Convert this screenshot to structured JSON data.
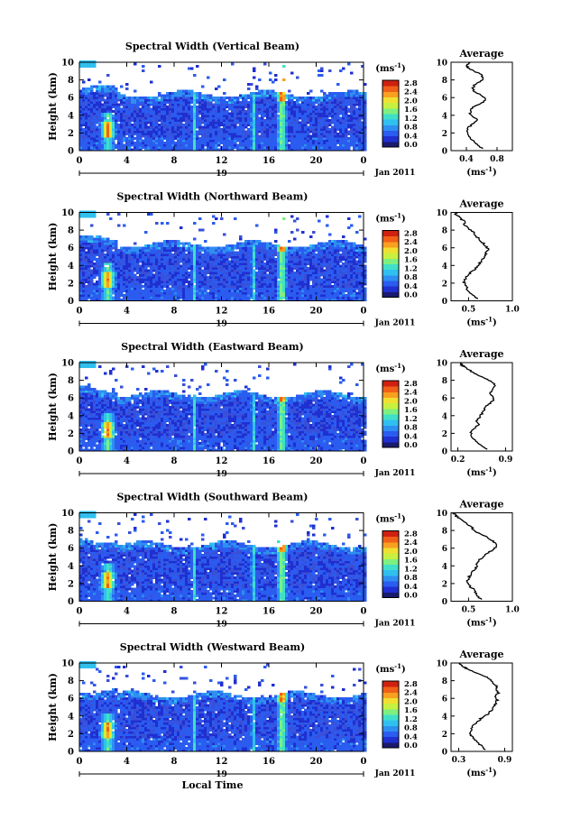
{
  "colorbar": {
    "unit_base": "(ms",
    "unit_exp": "-1",
    "unit_close": ")",
    "ticks": [
      "2.8",
      "2.4",
      "2.0",
      "1.6",
      "1.2",
      "0.8",
      "0.4",
      "0.0"
    ],
    "colors": [
      "#1a1a6e",
      "#1f2fd0",
      "#2a5cf0",
      "#2e8ff0",
      "#30c0f0",
      "#40e0c8",
      "#7ef080",
      "#c8f040",
      "#f0e030",
      "#f8a020",
      "#f06018",
      "#d02010"
    ]
  },
  "colors": {
    "background": "#ffffff",
    "base_blue": "#3a4fd8",
    "line": "#000000"
  },
  "chart_data": [
    {
      "type": "heatmap",
      "title": "Spectral Width (Vertical Beam)",
      "ylabel": "Height (km)",
      "xlabel": "",
      "x_ticks": [
        "0",
        "4",
        "8",
        "12",
        "16",
        "20",
        "0"
      ],
      "y_ticks": [
        "0",
        "2",
        "4",
        "6",
        "8",
        "10"
      ],
      "xlim": [
        0,
        24
      ],
      "ylim": [
        0,
        10
      ],
      "date_day": "19",
      "date_label": "Jan 2011",
      "value_range": [
        0.0,
        2.8
      ],
      "profile": {
        "title": "Average",
        "xlabel_base": "(ms",
        "xlabel_exp": "-1",
        "xlabel_close": ")",
        "x_ticks": [
          "0.4",
          "0.8"
        ],
        "xlim": [
          0.2,
          1.0
        ],
        "x": [
          0.62,
          0.55,
          0.5,
          0.45,
          0.42,
          0.4,
          0.42,
          0.48,
          0.55,
          0.5,
          0.45,
          0.45,
          0.5,
          0.6,
          0.65,
          0.6,
          0.52,
          0.48,
          0.5,
          0.58,
          0.62,
          0.6,
          0.5,
          0.42,
          0.4,
          0.42,
          0.45
        ],
        "y": [
          0.2,
          0.6,
          1.0,
          1.4,
          1.8,
          2.2,
          2.6,
          3.0,
          3.4,
          3.8,
          4.2,
          4.6,
          5.0,
          5.4,
          5.8,
          6.2,
          6.6,
          7.0,
          7.4,
          7.8,
          8.2,
          8.6,
          9.0,
          9.4,
          9.6,
          9.8,
          10.0
        ]
      }
    },
    {
      "type": "heatmap",
      "title": "Spectral Width (Northward Beam)",
      "ylabel": "Height (km)",
      "xlabel": "",
      "x_ticks": [
        "0",
        "4",
        "8",
        "12",
        "16",
        "20",
        "0"
      ],
      "y_ticks": [
        "0",
        "2",
        "4",
        "6",
        "8",
        "10"
      ],
      "xlim": [
        0,
        24
      ],
      "ylim": [
        0,
        10
      ],
      "date_day": "19",
      "date_label": "Jan 2011",
      "value_range": [
        0.0,
        2.8
      ],
      "profile": {
        "title": "Average",
        "xlabel_base": "(ms",
        "xlabel_exp": "-1",
        "xlabel_close": ")",
        "x_ticks": [
          "0.5",
          "1.0"
        ],
        "xlim": [
          0.3,
          1.0
        ],
        "x": [
          0.6,
          0.55,
          0.5,
          0.48,
          0.46,
          0.45,
          0.47,
          0.5,
          0.55,
          0.6,
          0.62,
          0.65,
          0.68,
          0.7,
          0.72,
          0.7,
          0.66,
          0.62,
          0.58,
          0.55,
          0.5,
          0.46,
          0.45,
          0.4,
          0.38,
          0.35,
          0.36
        ],
        "y": [
          0.2,
          0.6,
          1.0,
          1.4,
          1.8,
          2.2,
          2.6,
          3.0,
          3.4,
          3.8,
          4.2,
          4.6,
          5.0,
          5.4,
          5.8,
          6.2,
          6.6,
          7.0,
          7.4,
          7.8,
          8.2,
          8.6,
          9.0,
          9.4,
          9.6,
          9.8,
          10.0
        ]
      }
    },
    {
      "type": "heatmap",
      "title": "Spectral Width (Eastward Beam)",
      "ylabel": "Height (km)",
      "xlabel": "",
      "x_ticks": [
        "0",
        "4",
        "8",
        "12",
        "16",
        "20",
        "0"
      ],
      "y_ticks": [
        "0",
        "2",
        "4",
        "6",
        "8",
        "10"
      ],
      "xlim": [
        0,
        24
      ],
      "ylim": [
        0,
        10
      ],
      "date_day": "19",
      "date_label": "Jan 2011",
      "value_range": [
        0.0,
        2.8
      ],
      "profile": {
        "title": "Average",
        "xlabel_base": "(ms",
        "xlabel_exp": "-1",
        "xlabel_close": ")",
        "x_ticks": [
          "0.2",
          "0.9"
        ],
        "xlim": [
          0.1,
          1.0
        ],
        "x": [
          0.62,
          0.55,
          0.48,
          0.42,
          0.38,
          0.4,
          0.45,
          0.5,
          0.48,
          0.52,
          0.55,
          0.58,
          0.6,
          0.68,
          0.72,
          0.7,
          0.68,
          0.72,
          0.75,
          0.7,
          0.6,
          0.5,
          0.4,
          0.32,
          0.28,
          0.25,
          0.25
        ],
        "y": [
          0.2,
          0.6,
          1.0,
          1.4,
          1.8,
          2.2,
          2.6,
          3.0,
          3.4,
          3.8,
          4.2,
          4.6,
          5.0,
          5.4,
          5.8,
          6.2,
          6.6,
          7.0,
          7.4,
          7.8,
          8.2,
          8.6,
          9.0,
          9.4,
          9.6,
          9.8,
          10.0
        ]
      }
    },
    {
      "type": "heatmap",
      "title": "Spectral Width (Southward Beam)",
      "ylabel": "Height (km)",
      "xlabel": "",
      "x_ticks": [
        "0",
        "4",
        "8",
        "12",
        "16",
        "20",
        "0"
      ],
      "y_ticks": [
        "0",
        "2",
        "4",
        "6",
        "8",
        "10"
      ],
      "xlim": [
        0,
        24
      ],
      "ylim": [
        0,
        10
      ],
      "date_day": "19",
      "date_label": "Jan 2011",
      "value_range": [
        0.0,
        2.8
      ],
      "profile": {
        "title": "Average",
        "xlabel_base": "(ms",
        "xlabel_exp": "-1",
        "xlabel_close": ")",
        "x_ticks": [
          "0.5",
          "1.0"
        ],
        "xlim": [
          0.3,
          1.0
        ],
        "x": [
          0.65,
          0.6,
          0.58,
          0.55,
          0.5,
          0.48,
          0.5,
          0.52,
          0.55,
          0.58,
          0.6,
          0.62,
          0.66,
          0.7,
          0.78,
          0.82,
          0.8,
          0.75,
          0.68,
          0.6,
          0.55,
          0.5,
          0.45,
          0.4,
          0.36,
          0.34,
          0.34
        ],
        "y": [
          0.2,
          0.6,
          1.0,
          1.4,
          1.8,
          2.2,
          2.6,
          3.0,
          3.4,
          3.8,
          4.2,
          4.6,
          5.0,
          5.4,
          5.8,
          6.2,
          6.6,
          7.0,
          7.4,
          7.8,
          8.2,
          8.6,
          9.0,
          9.4,
          9.6,
          9.8,
          10.0
        ]
      }
    },
    {
      "type": "heatmap",
      "title": "Spectral Width (Westward Beam)",
      "ylabel": "Height (km)",
      "xlabel": "Local Time",
      "x_ticks": [
        "0",
        "4",
        "8",
        "12",
        "16",
        "20",
        "0"
      ],
      "y_ticks": [
        "0",
        "2",
        "4",
        "6",
        "8",
        "10"
      ],
      "xlim": [
        0,
        24
      ],
      "ylim": [
        0,
        10
      ],
      "date_day": "19",
      "date_label": "Jan 2011",
      "value_range": [
        0.0,
        2.8
      ],
      "profile": {
        "title": "Average",
        "xlabel_base": "(ms",
        "xlabel_exp": "-1",
        "xlabel_close": ")",
        "x_ticks": [
          "0.3",
          "0.9"
        ],
        "xlim": [
          0.2,
          1.0
        ],
        "x": [
          0.65,
          0.6,
          0.55,
          0.5,
          0.46,
          0.45,
          0.47,
          0.5,
          0.55,
          0.6,
          0.68,
          0.72,
          0.75,
          0.78,
          0.8,
          0.76,
          0.82,
          0.78,
          0.8,
          0.74,
          0.7,
          0.62,
          0.5,
          0.4,
          0.35,
          0.32,
          0.32
        ],
        "y": [
          0.2,
          0.6,
          1.0,
          1.4,
          1.8,
          2.2,
          2.6,
          3.0,
          3.4,
          3.8,
          4.2,
          4.6,
          5.0,
          5.4,
          5.8,
          6.2,
          6.6,
          7.0,
          7.4,
          7.8,
          8.2,
          8.6,
          9.0,
          9.4,
          9.6,
          9.8,
          10.0
        ]
      }
    }
  ]
}
